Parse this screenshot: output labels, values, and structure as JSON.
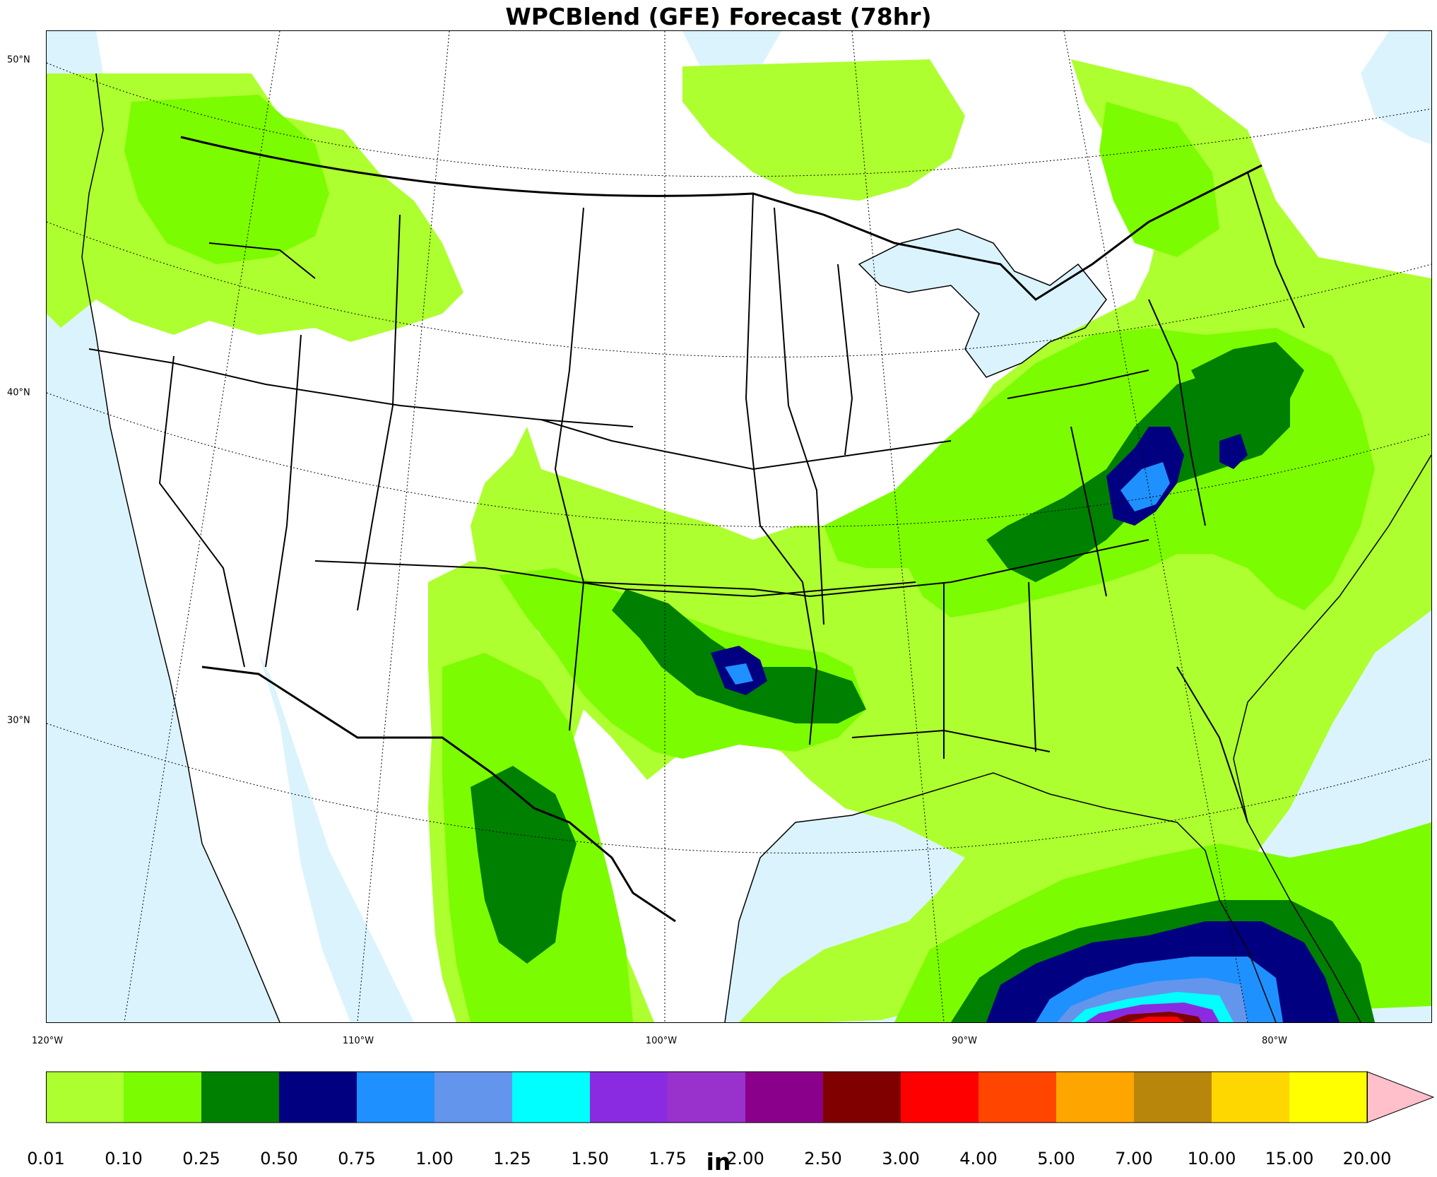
{
  "title": "WPCBlend (GFE) Forecast (78hr)",
  "units": "in",
  "map": {
    "lat_labels": [
      "50°N",
      "40°N",
      "30°N"
    ],
    "lon_labels": [
      "120°W",
      "110°W",
      "100°W",
      "90°W",
      "80°W"
    ],
    "colors": {
      "ocean": "#dbf3fc",
      "land": "#ffffff",
      "boundary": "#000000"
    }
  },
  "colorbar": {
    "ticks": [
      "0.01",
      "0.10",
      "0.25",
      "0.50",
      "0.75",
      "1.00",
      "1.25",
      "1.50",
      "1.75",
      "2.00",
      "2.50",
      "3.00",
      "4.00",
      "5.00",
      "7.00",
      "10.00",
      "15.00",
      "20.00"
    ],
    "colors": [
      "#adff2f",
      "#7cfc00",
      "#008000",
      "#000080",
      "#1e90ff",
      "#6495ed",
      "#00ffff",
      "#8a2be2",
      "#9932cc",
      "#8b008b",
      "#800000",
      "#ff0000",
      "#ff4500",
      "#ffa500",
      "#b8860b",
      "#ffd700",
      "#ffff00"
    ],
    "extend_color": "#ffc0cb"
  }
}
